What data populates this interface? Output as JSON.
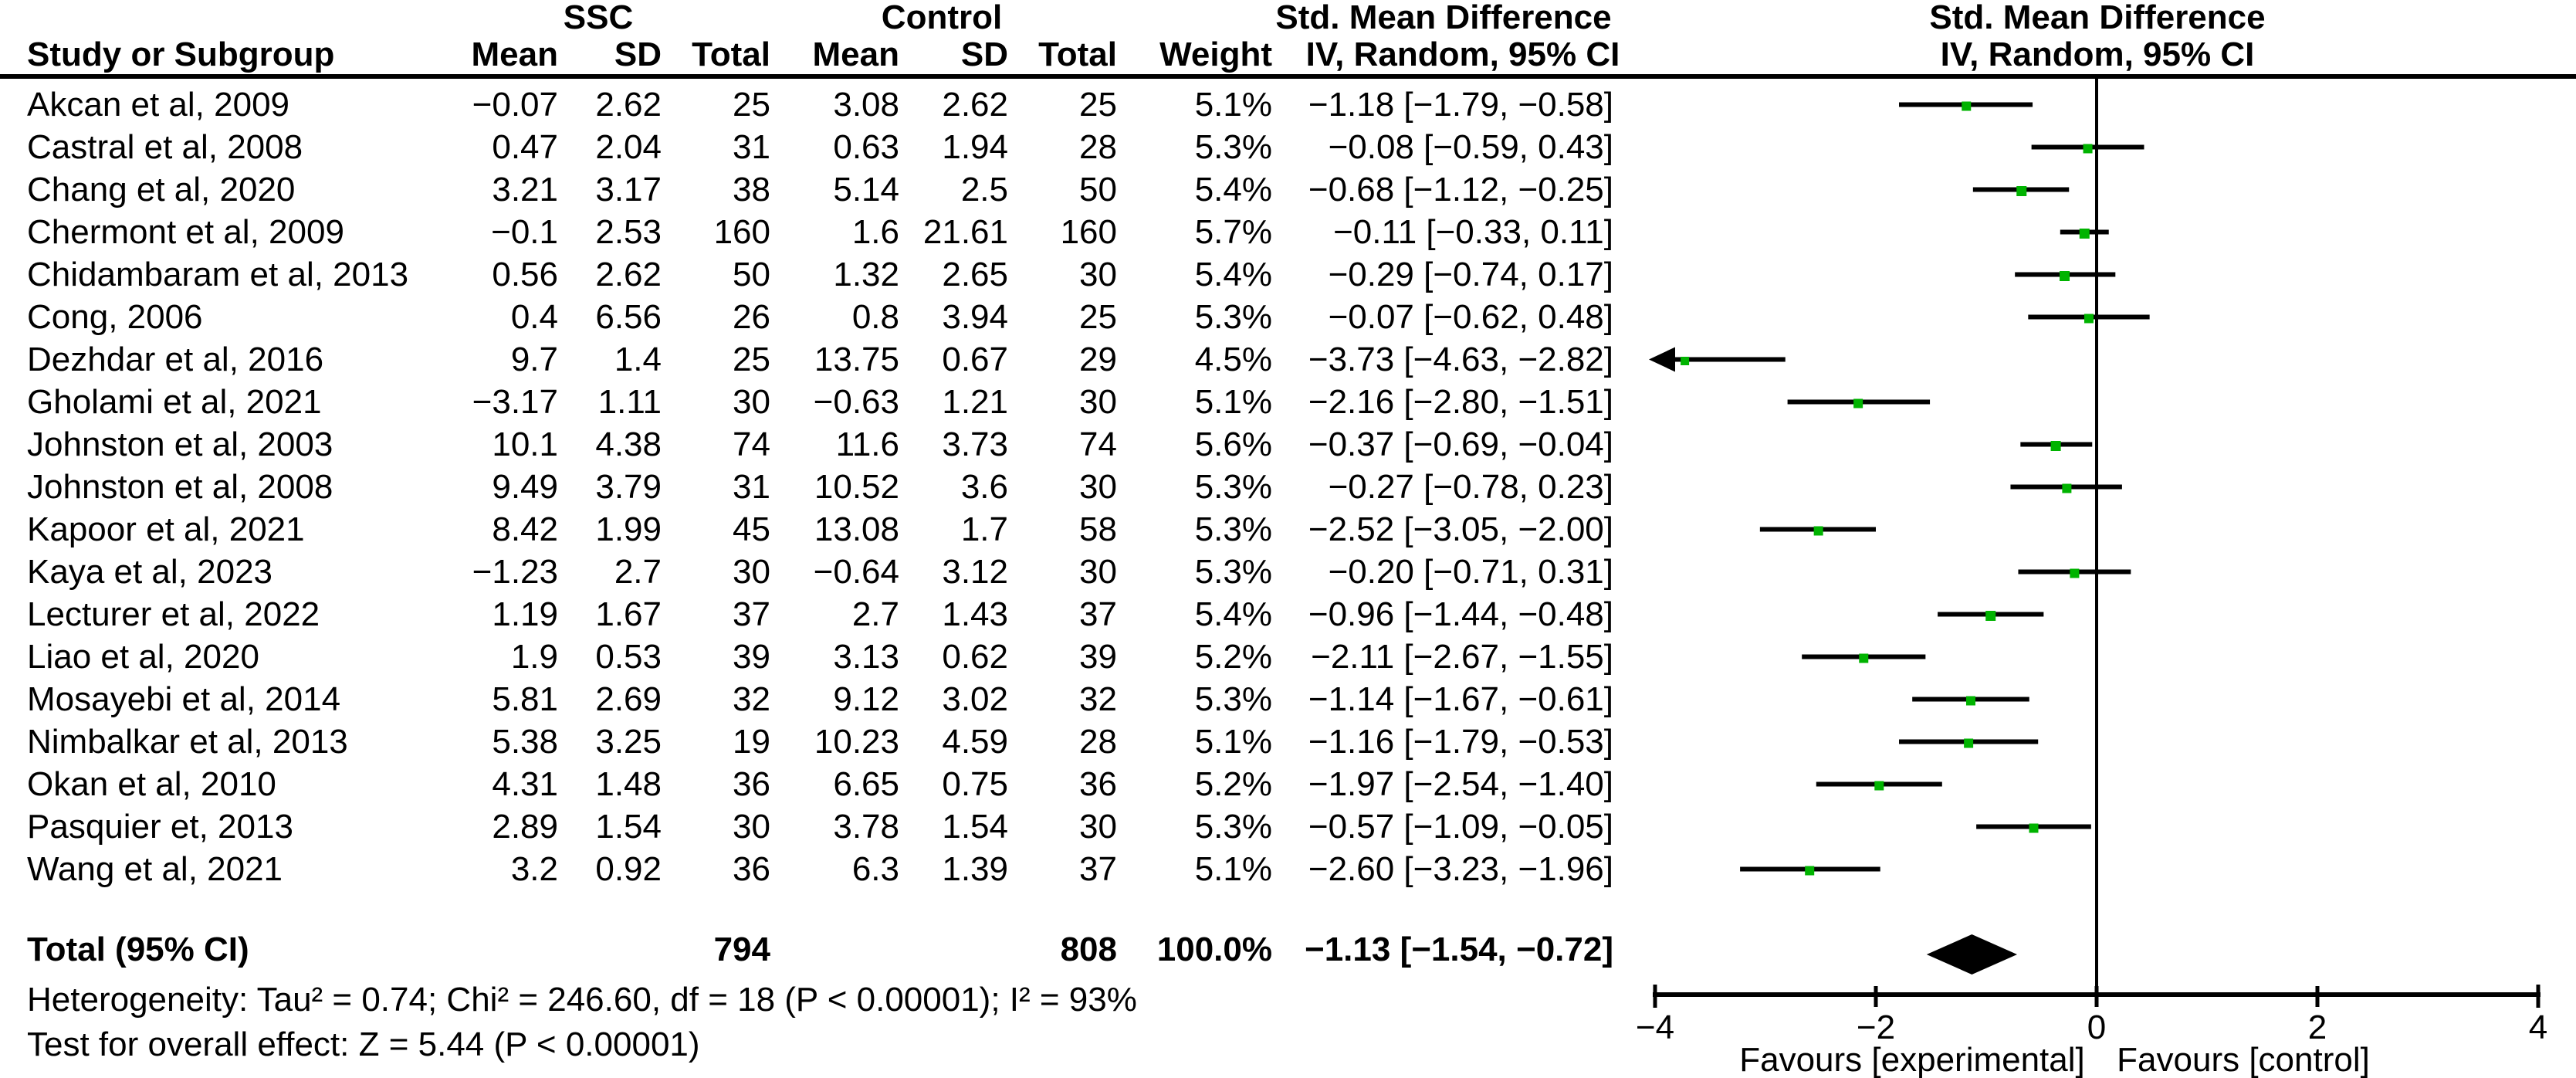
{
  "table_header": {
    "group_experimental": "SSC",
    "group_control": "Control",
    "smd_left": "Std. Mean Difference",
    "smd_right": "Std. Mean Difference",
    "study_col": "Study or Subgroup",
    "mean_col": "Mean",
    "sd_col": "SD",
    "total_col": "Total",
    "weight_col": "Weight",
    "ci_col_left": "IV, Random, 95% CI",
    "ci_col_right": "IV, Random, 95% CI"
  },
  "rows": [
    {
      "study": "Akcan et al, 2009",
      "e_mean": "−0.07",
      "e_sd": "2.62",
      "e_total": "25",
      "c_mean": "3.08",
      "c_sd": "2.62",
      "c_total": "25",
      "weight": "5.1%",
      "ci": "−1.18 [−1.79, −0.58]"
    },
    {
      "study": "Castral et al, 2008",
      "e_mean": "0.47",
      "e_sd": "2.04",
      "e_total": "31",
      "c_mean": "0.63",
      "c_sd": "1.94",
      "c_total": "28",
      "weight": "5.3%",
      "ci": "−0.08 [−0.59, 0.43]"
    },
    {
      "study": "Chang et al, 2020",
      "e_mean": "3.21",
      "e_sd": "3.17",
      "e_total": "38",
      "c_mean": "5.14",
      "c_sd": "2.5",
      "c_total": "50",
      "weight": "5.4%",
      "ci": "−0.68 [−1.12, −0.25]"
    },
    {
      "study": "Chermont et al, 2009",
      "e_mean": "−0.1",
      "e_sd": "2.53",
      "e_total": "160",
      "c_mean": "1.6",
      "c_sd": "21.61",
      "c_total": "160",
      "weight": "5.7%",
      "ci": "−0.11 [−0.33, 0.11]"
    },
    {
      "study": "Chidambaram et al, 2013",
      "e_mean": "0.56",
      "e_sd": "2.62",
      "e_total": "50",
      "c_mean": "1.32",
      "c_sd": "2.65",
      "c_total": "30",
      "weight": "5.4%",
      "ci": "−0.29 [−0.74, 0.17]"
    },
    {
      "study": "Cong, 2006",
      "e_mean": "0.4",
      "e_sd": "6.56",
      "e_total": "26",
      "c_mean": "0.8",
      "c_sd": "3.94",
      "c_total": "25",
      "weight": "5.3%",
      "ci": "−0.07 [−0.62, 0.48]"
    },
    {
      "study": "Dezhdar et al, 2016",
      "e_mean": "9.7",
      "e_sd": "1.4",
      "e_total": "25",
      "c_mean": "13.75",
      "c_sd": "0.67",
      "c_total": "29",
      "weight": "4.5%",
      "ci": "−3.73 [−4.63, −2.82]"
    },
    {
      "study": "Gholami et al, 2021",
      "e_mean": "−3.17",
      "e_sd": "1.11",
      "e_total": "30",
      "c_mean": "−0.63",
      "c_sd": "1.21",
      "c_total": "30",
      "weight": "5.1%",
      "ci": "−2.16 [−2.80, −1.51]"
    },
    {
      "study": "Johnston et al, 2003",
      "e_mean": "10.1",
      "e_sd": "4.38",
      "e_total": "74",
      "c_mean": "11.6",
      "c_sd": "3.73",
      "c_total": "74",
      "weight": "5.6%",
      "ci": "−0.37 [−0.69, −0.04]"
    },
    {
      "study": "Johnston et al, 2008",
      "e_mean": "9.49",
      "e_sd": "3.79",
      "e_total": "31",
      "c_mean": "10.52",
      "c_sd": "3.6",
      "c_total": "30",
      "weight": "5.3%",
      "ci": "−0.27 [−0.78, 0.23]"
    },
    {
      "study": "Kapoor et al, 2021",
      "e_mean": "8.42",
      "e_sd": "1.99",
      "e_total": "45",
      "c_mean": "13.08",
      "c_sd": "1.7",
      "c_total": "58",
      "weight": "5.3%",
      "ci": "−2.52 [−3.05, −2.00]"
    },
    {
      "study": "Kaya et al, 2023",
      "e_mean": "−1.23",
      "e_sd": "2.7",
      "e_total": "30",
      "c_mean": "−0.64",
      "c_sd": "3.12",
      "c_total": "30",
      "weight": "5.3%",
      "ci": "−0.20 [−0.71, 0.31]"
    },
    {
      "study": "Lecturer et al, 2022",
      "e_mean": "1.19",
      "e_sd": "1.67",
      "e_total": "37",
      "c_mean": "2.7",
      "c_sd": "1.43",
      "c_total": "37",
      "weight": "5.4%",
      "ci": "−0.96 [−1.44, −0.48]"
    },
    {
      "study": "Liao et al, 2020",
      "e_mean": "1.9",
      "e_sd": "0.53",
      "e_total": "39",
      "c_mean": "3.13",
      "c_sd": "0.62",
      "c_total": "39",
      "weight": "5.2%",
      "ci": "−2.11 [−2.67, −1.55]"
    },
    {
      "study": "Mosayebi et al, 2014",
      "e_mean": "5.81",
      "e_sd": "2.69",
      "e_total": "32",
      "c_mean": "9.12",
      "c_sd": "3.02",
      "c_total": "32",
      "weight": "5.3%",
      "ci": "−1.14 [−1.67, −0.61]"
    },
    {
      "study": "Nimbalkar et al, 2013",
      "e_mean": "5.38",
      "e_sd": "3.25",
      "e_total": "19",
      "c_mean": "10.23",
      "c_sd": "4.59",
      "c_total": "28",
      "weight": "5.1%",
      "ci": "−1.16 [−1.79, −0.53]"
    },
    {
      "study": "Okan et al, 2010",
      "e_mean": "4.31",
      "e_sd": "1.48",
      "e_total": "36",
      "c_mean": "6.65",
      "c_sd": "0.75",
      "c_total": "36",
      "weight": "5.2%",
      "ci": "−1.97 [−2.54, −1.40]"
    },
    {
      "study": "Pasquier et, 2013",
      "e_mean": "2.89",
      "e_sd": "1.54",
      "e_total": "30",
      "c_mean": "3.78",
      "c_sd": "1.54",
      "c_total": "30",
      "weight": "5.3%",
      "ci": "−0.57 [−1.09, −0.05]"
    },
    {
      "study": "Wang et al, 2021",
      "e_mean": "3.2",
      "e_sd": "0.92",
      "e_total": "36",
      "c_mean": "6.3",
      "c_sd": "1.39",
      "c_total": "37",
      "weight": "5.1%",
      "ci": "−2.60 [−3.23, −1.96]"
    }
  ],
  "total_row": {
    "label": "Total (95% CI)",
    "e_total": "794",
    "c_total": "808",
    "weight": "100.0%",
    "ci": "−1.13 [−1.54, −0.72]"
  },
  "footnotes": {
    "heterogeneity": "Heterogeneity: Tau² = 0.74; Chi² = 246.60, df = 18 (P < 0.00001); I² = 93%",
    "overall_effect": "Test for overall effect: Z = 5.44 (P < 0.00001)"
  },
  "colors": {
    "marker_green": "#00b300",
    "ink": "#000000"
  },
  "chart_data": {
    "type": "scatter",
    "subtype": "forest-plot",
    "title": "Std. Mean Difference",
    "subtitle": "IV, Random, 95% CI",
    "x_axis": {
      "min": -4,
      "max": 4,
      "ticks": [
        -4,
        -2,
        0,
        2,
        4
      ],
      "tick_labels": [
        "−4",
        "−2",
        "0",
        "2",
        "4"
      ],
      "label_left": "Favours [experimental]",
      "label_right": "Favours [control]"
    },
    "studies": [
      "Akcan et al, 2009",
      "Castral et al, 2008",
      "Chang et al, 2020",
      "Chermont et al, 2009",
      "Chidambaram et al, 2013",
      "Cong, 2006",
      "Dezhdar et al, 2016",
      "Gholami et al, 2021",
      "Johnston et al, 2003",
      "Johnston et al, 2008",
      "Kapoor et al, 2021",
      "Kaya et al, 2023",
      "Lecturer et al, 2022",
      "Liao et al, 2020",
      "Mosayebi et al, 2014",
      "Nimbalkar et al, 2013",
      "Okan et al, 2010",
      "Pasquier et, 2013",
      "Wang et al, 2021"
    ],
    "estimates": [
      -1.18,
      -0.08,
      -0.68,
      -0.11,
      -0.29,
      -0.07,
      -3.73,
      -2.16,
      -0.37,
      -0.27,
      -2.52,
      -0.2,
      -0.96,
      -2.11,
      -1.14,
      -1.16,
      -1.97,
      -0.57,
      -2.6
    ],
    "ci_lower": [
      -1.79,
      -0.59,
      -1.12,
      -0.33,
      -0.74,
      -0.62,
      -4.63,
      -2.8,
      -0.69,
      -0.78,
      -3.05,
      -0.71,
      -1.44,
      -2.67,
      -1.67,
      -1.79,
      -2.54,
      -1.09,
      -3.23
    ],
    "ci_upper": [
      -0.58,
      0.43,
      -0.25,
      0.11,
      0.17,
      0.48,
      -2.82,
      -1.51,
      -0.04,
      0.23,
      -2.0,
      0.31,
      -0.48,
      -1.55,
      -0.61,
      -0.53,
      -1.4,
      -0.05,
      -1.96
    ],
    "weights_pct": [
      5.1,
      5.3,
      5.4,
      5.7,
      5.4,
      5.3,
      4.5,
      5.1,
      5.6,
      5.3,
      5.3,
      5.3,
      5.4,
      5.2,
      5.3,
      5.1,
      5.2,
      5.3,
      5.1
    ],
    "total": {
      "label": "Total (95% CI)",
      "estimate": -1.13,
      "ci_lower": -1.54,
      "ci_upper": -0.72,
      "weight_pct": 100.0
    }
  }
}
